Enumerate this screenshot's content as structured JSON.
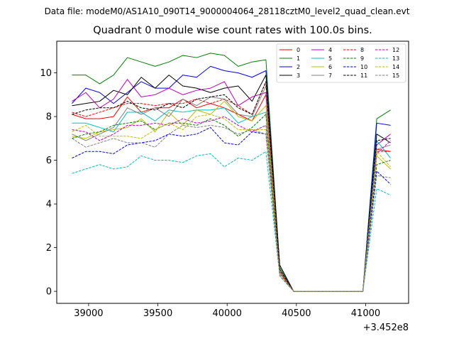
{
  "figure_title": "Data file: modeM0/AS1A10_090T14_9000004064_28118cztM0_level2_quad_clean.evt",
  "chart_data": {
    "type": "line",
    "title": "Quadrant 0 module wise count rates with 100.0s bins.",
    "xlabel": "",
    "ylabel": "",
    "x_offset_label": "+3.452e8",
    "xlim": [
      38770,
      41310
    ],
    "ylim": [
      -0.55,
      11.45
    ],
    "xticks": [
      39000,
      39500,
      40000,
      40500,
      41000
    ],
    "xtick_labels": [
      "39000",
      "39500",
      "40000",
      "40500",
      "41000"
    ],
    "yticks": [
      0,
      2,
      4,
      6,
      8,
      10
    ],
    "ytick_labels": [
      "0",
      "2",
      "4",
      "6",
      "8",
      "10"
    ],
    "legend_position": "top-right",
    "x": [
      38880,
      38980,
      39080,
      39180,
      39280,
      39380,
      39480,
      39580,
      39680,
      39780,
      39880,
      39980,
      40080,
      40180,
      40280,
      40380,
      40480,
      40580,
      40680,
      40780,
      40880,
      40980,
      41080,
      41180
    ],
    "series": [
      {
        "name": "0",
        "color": "#ff0000",
        "dash": "solid",
        "values": [
          8.1,
          7.9,
          7.9,
          8.0,
          8.9,
          8.2,
          8.4,
          8.4,
          8.8,
          8.4,
          8.6,
          8.4,
          8.1,
          7.8,
          9.0,
          0.9,
          0.0,
          0.0,
          0.0,
          0.0,
          0.0,
          0.0,
          6.5,
          6.4
        ]
      },
      {
        "name": "1",
        "color": "#008000",
        "dash": "solid",
        "values": [
          9.9,
          9.9,
          9.5,
          9.9,
          10.7,
          10.5,
          10.3,
          10.5,
          10.8,
          10.7,
          10.9,
          10.8,
          10.3,
          10.5,
          10.6,
          1.1,
          0.0,
          0.0,
          0.0,
          0.0,
          0.0,
          0.0,
          7.9,
          8.3
        ]
      },
      {
        "name": "2",
        "color": "#0000ff",
        "dash": "solid",
        "values": [
          8.6,
          9.3,
          9.1,
          8.6,
          9.1,
          9.6,
          9.3,
          9.3,
          9.9,
          9.8,
          10.3,
          10.1,
          10.0,
          9.8,
          10.1,
          1.0,
          0.0,
          0.0,
          0.0,
          0.0,
          0.0,
          0.0,
          7.7,
          7.6
        ]
      },
      {
        "name": "3",
        "color": "#000000",
        "dash": "solid",
        "values": [
          8.5,
          8.6,
          8.7,
          9.2,
          9.0,
          9.8,
          9.3,
          9.9,
          9.4,
          9.3,
          9.1,
          9.3,
          9.4,
          8.7,
          9.9,
          1.2,
          0.0,
          0.0,
          0.0,
          0.0,
          0.0,
          0.0,
          7.2,
          6.8
        ]
      },
      {
        "name": "4",
        "color": "#c000c0",
        "dash": "solid",
        "values": [
          8.7,
          9.1,
          8.4,
          8.8,
          9.7,
          8.9,
          9.0,
          9.3,
          9.0,
          9.2,
          9.3,
          9.6,
          8.5,
          8.9,
          9.1,
          1.0,
          0.0,
          0.0,
          0.0,
          0.0,
          0.0,
          0.0,
          6.7,
          7.2
        ]
      },
      {
        "name": "5",
        "color": "#00bfbf",
        "dash": "solid",
        "values": [
          7.7,
          7.7,
          7.5,
          7.3,
          8.2,
          8.2,
          7.8,
          8.3,
          8.2,
          8.3,
          8.3,
          8.4,
          7.7,
          8.0,
          8.2,
          0.9,
          0.0,
          0.0,
          0.0,
          0.0,
          0.0,
          0.0,
          6.9,
          6.1
        ]
      },
      {
        "name": "6",
        "color": "#bfbf00",
        "dash": "solid",
        "values": [
          7.1,
          7.0,
          7.3,
          7.4,
          7.5,
          7.9,
          7.3,
          8.2,
          7.6,
          8.3,
          8.1,
          8.7,
          8.0,
          7.8,
          8.5,
          0.8,
          0.0,
          0.0,
          0.0,
          0.0,
          0.0,
          0.0,
          6.2,
          5.6
        ]
      },
      {
        "name": "7",
        "color": "#808080",
        "dash": "solid",
        "values": [
          7.2,
          6.9,
          7.2,
          7.5,
          8.4,
          8.1,
          8.4,
          8.0,
          8.8,
          8.5,
          8.9,
          8.8,
          8.1,
          8.0,
          9.4,
          1.0,
          0.0,
          0.0,
          0.0,
          0.0,
          0.0,
          0.0,
          6.5,
          6.7
        ]
      },
      {
        "name": "8",
        "color": "#ff0000",
        "dash": "dashed",
        "values": [
          8.2,
          8.0,
          8.2,
          8.4,
          8.6,
          8.6,
          8.5,
          8.6,
          8.6,
          8.8,
          8.6,
          8.8,
          8.5,
          8.1,
          9.6,
          0.9,
          0.0,
          0.0,
          0.0,
          0.0,
          0.0,
          0.0,
          6.4,
          6.4
        ]
      },
      {
        "name": "9",
        "color": "#008000",
        "dash": "dashed",
        "values": [
          7.0,
          7.2,
          7.3,
          7.6,
          7.7,
          7.8,
          7.4,
          7.7,
          7.7,
          7.6,
          7.9,
          7.6,
          7.1,
          7.5,
          8.1,
          0.8,
          0.0,
          0.0,
          0.0,
          0.0,
          0.0,
          0.0,
          5.8,
          6.0
        ]
      },
      {
        "name": "10",
        "color": "#0000ff",
        "dash": "dashed",
        "values": [
          6.1,
          6.4,
          6.4,
          6.3,
          6.7,
          6.8,
          6.9,
          7.2,
          7.1,
          7.2,
          7.5,
          6.8,
          6.7,
          7.3,
          7.2,
          0.8,
          0.0,
          0.0,
          0.0,
          0.0,
          0.0,
          0.0,
          5.5,
          4.9
        ]
      },
      {
        "name": "11",
        "color": "#000000",
        "dash": "dashed",
        "values": [
          8.1,
          8.3,
          8.4,
          8.4,
          8.7,
          8.4,
          8.3,
          8.6,
          8.4,
          8.8,
          8.9,
          9.0,
          8.4,
          8.1,
          9.6,
          1.0,
          0.0,
          0.0,
          0.0,
          0.0,
          0.0,
          0.0,
          6.9,
          7.0
        ]
      },
      {
        "name": "12",
        "color": "#c000c0",
        "dash": "dashed",
        "values": [
          7.4,
          7.3,
          6.9,
          7.2,
          7.6,
          7.6,
          7.7,
          7.6,
          7.9,
          7.7,
          7.8,
          8.0,
          7.6,
          7.3,
          7.6,
          0.8,
          0.0,
          0.0,
          0.0,
          0.0,
          0.0,
          0.0,
          6.3,
          6.9
        ]
      },
      {
        "name": "13",
        "color": "#00bfbf",
        "dash": "dashed",
        "values": [
          5.4,
          5.6,
          5.8,
          5.6,
          5.7,
          6.2,
          6.0,
          6.0,
          5.9,
          6.2,
          6.3,
          5.7,
          6.1,
          6.0,
          6.4,
          0.7,
          0.0,
          0.0,
          0.0,
          0.0,
          0.0,
          0.0,
          4.7,
          4.4
        ]
      },
      {
        "name": "14",
        "color": "#bfbf00",
        "dash": "dashed",
        "values": [
          7.3,
          7.6,
          7.1,
          7.1,
          7.1,
          7.0,
          7.4,
          7.7,
          7.4,
          8.0,
          8.1,
          7.9,
          7.4,
          7.4,
          7.4,
          0.8,
          0.0,
          0.0,
          0.0,
          0.0,
          0.0,
          0.0,
          6.4,
          5.7
        ]
      },
      {
        "name": "15",
        "color": "#808080",
        "dash": "dashed",
        "values": [
          7.0,
          6.6,
          6.8,
          7.0,
          6.8,
          6.8,
          6.6,
          7.2,
          7.6,
          7.5,
          7.6,
          7.5,
          7.2,
          7.4,
          7.2,
          0.7,
          0.0,
          0.0,
          0.0,
          0.0,
          0.0,
          0.0,
          5.3,
          5.2
        ]
      }
    ]
  }
}
